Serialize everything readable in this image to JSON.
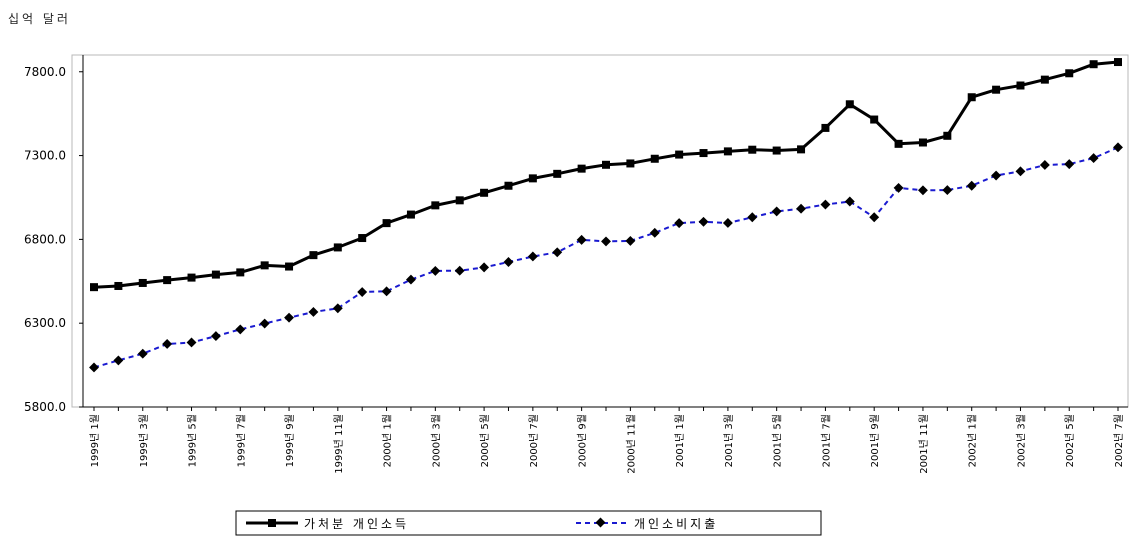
{
  "chart_data": {
    "type": "line",
    "unit_label": "십억 달러",
    "ylim": [
      5800,
      7900
    ],
    "yticks": [
      "5800.0",
      "6300.0",
      "6800.0",
      "7300.0",
      "7800.0"
    ],
    "grid": false,
    "legend_position": "bottom",
    "xtick_labels": [
      "1999년 1월",
      "1999년 3월",
      "1999년 5월",
      "1999년 7월",
      "1999년 9월",
      "1999년 11월",
      "2000년 1월",
      "2000년 3월",
      "2000년 5월",
      "2000년 7월",
      "2000년 9월",
      "2000년 11월",
      "2001년 1월",
      "2001년 3월",
      "2001년 5월",
      "2001년 7월",
      "2001년 9월",
      "2001년 11월",
      "2002년 1월",
      "2002년 3월",
      "2002년 5월",
      "2002년 7월"
    ],
    "x": [
      "1999-01",
      "1999-02",
      "1999-03",
      "1999-04",
      "1999-05",
      "1999-06",
      "1999-07",
      "1999-08",
      "1999-09",
      "1999-10",
      "1999-11",
      "1999-12",
      "2000-01",
      "2000-02",
      "2000-03",
      "2000-04",
      "2000-05",
      "2000-06",
      "2000-07",
      "2000-08",
      "2000-09",
      "2000-10",
      "2000-11",
      "2000-12",
      "2001-01",
      "2001-02",
      "2001-03",
      "2001-04",
      "2001-05",
      "2001-06",
      "2001-07",
      "2001-08",
      "2001-09",
      "2001-10",
      "2001-11",
      "2001-12",
      "2002-01",
      "2002-02",
      "2002-03",
      "2002-04",
      "2002-05",
      "2002-06",
      "2002-07"
    ],
    "series": [
      {
        "name": "가처분 개인소득",
        "color": "#000000",
        "style": "solid",
        "marker": "square",
        "values": [
          6515,
          6522,
          6540,
          6557,
          6572,
          6590,
          6603,
          6645,
          6638,
          6706,
          6752,
          6808,
          6897,
          6948,
          7003,
          7033,
          7078,
          7120,
          7164,
          7191,
          7222,
          7245,
          7253,
          7281,
          7306,
          7315,
          7325,
          7335,
          7330,
          7337,
          7465,
          7606,
          7515,
          7370,
          7378,
          7418,
          7648,
          7693,
          7718,
          7753,
          7791,
          7845,
          7858
        ]
      },
      {
        "name": "개인소비지출",
        "color": "#1a1ad0",
        "style": "dashed",
        "marker": "diamond",
        "values": [
          6036,
          6078,
          6118,
          6176,
          6185,
          6223,
          6263,
          6298,
          6333,
          6367,
          6389,
          6486,
          6490,
          6560,
          6612,
          6613,
          6633,
          6665,
          6698,
          6723,
          6797,
          6788,
          6791,
          6839,
          6897,
          6905,
          6898,
          6932,
          6967,
          6983,
          7008,
          7026,
          6932,
          7107,
          7093,
          7094,
          7120,
          7181,
          7206,
          7244,
          7249,
          7285,
          7349
        ]
      }
    ]
  }
}
